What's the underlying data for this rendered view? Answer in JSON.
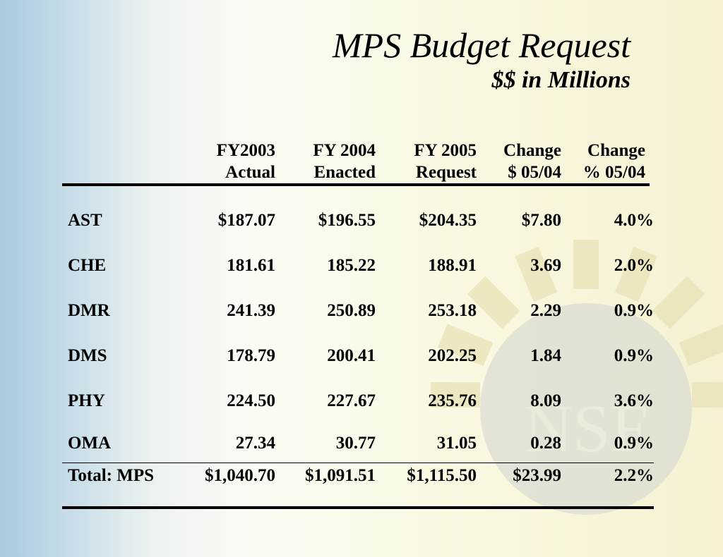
{
  "title": "MPS Budget Request",
  "subtitle": "$$ in Millions",
  "watermark": "NSF",
  "header": [
    [
      "FY2003",
      "Actual"
    ],
    [
      "FY 2004",
      "Enacted"
    ],
    [
      "FY 2005",
      "Request"
    ],
    [
      "Change",
      "$ 05/04"
    ],
    [
      "Change",
      "% 05/04"
    ]
  ],
  "rows": [
    {
      "label": "AST",
      "values": [
        "$187.07",
        "$196.55",
        "$204.35",
        "$7.80",
        "4.0%"
      ]
    },
    {
      "label": "CHE",
      "values": [
        "181.61",
        "185.22",
        "188.91",
        "3.69",
        "2.0%"
      ]
    },
    {
      "label": "DMR",
      "values": [
        "241.39",
        "250.89",
        "253.18",
        "2.29",
        "0.9%"
      ]
    },
    {
      "label": "DMS",
      "values": [
        "178.79",
        "200.41",
        "202.25",
        "1.84",
        "0.9%"
      ]
    },
    {
      "label": "PHY",
      "values": [
        "224.50",
        "227.67",
        "235.76",
        "8.09",
        "3.6%"
      ]
    },
    {
      "label": "OMA",
      "values": [
        "27.34",
        "30.77",
        "31.05",
        "0.28",
        "0.9%"
      ]
    }
  ],
  "total": {
    "label": "Total: MPS",
    "values": [
      "$1,040.70",
      "$1,091.51",
      "$1,115.50",
      "$23.99",
      "2.2%"
    ]
  }
}
